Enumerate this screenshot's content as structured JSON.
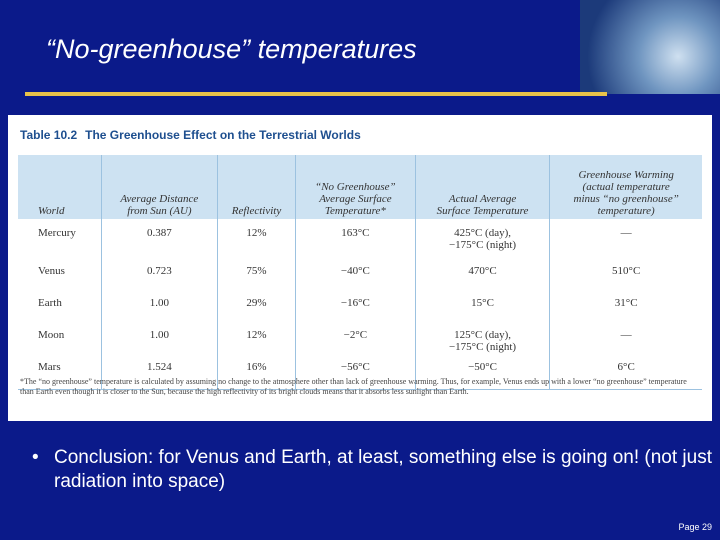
{
  "slide": {
    "title": "“No-greenhouse” temperatures",
    "table": {
      "label": "Table 10.2",
      "caption": "The Greenhouse Effect on the Terrestrial Worlds",
      "headers": [
        "World",
        "Average Distance\nfrom Sun (AU)",
        "Reflectivity",
        "“No Greenhouse”\nAverage Surface\nTemperature*",
        "Actual Average\nSurface Temperature",
        "Greenhouse Warming\n(actual temperature\nminus “no greenhouse”\ntemperature)"
      ],
      "rows": [
        [
          "Mercury",
          "0.387",
          "12%",
          "163°C",
          "425°C (day),\n−175°C (night)",
          "—"
        ],
        [
          "Venus",
          "0.723",
          "75%",
          "−40°C",
          "470°C",
          "510°C"
        ],
        [
          "Earth",
          "1.00",
          "29%",
          "−16°C",
          "15°C",
          "31°C"
        ],
        [
          "Moon",
          "1.00",
          "12%",
          "−2°C",
          "125°C (day),\n−175°C (night)",
          "—"
        ],
        [
          "Mars",
          "1.524",
          "16%",
          "−56°C",
          "−50°C",
          "6°C"
        ]
      ],
      "footnote": "*The “no greenhouse” temperature is calculated by assuming no change to the atmosphere other than lack of greenhouse warming. Thus, for example, Venus ends up with a lower “no greenhouse” temperature than Earth even though it is closer to the Sun, because the high reflectivity of its bright clouds means that it absorbs less sunlight than Earth."
    },
    "bullet": "Conclusion: for Venus and Earth, at least, something else is going on!  (not just radiation into space)",
    "page": "Page 29"
  }
}
